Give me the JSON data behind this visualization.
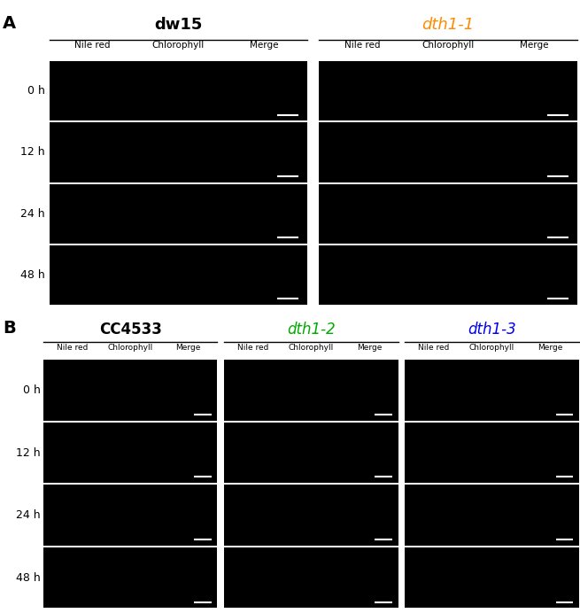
{
  "panel_A": {
    "label": "A",
    "groups": [
      {
        "name": "dw15",
        "color": "black",
        "italic": false,
        "bold": true
      },
      {
        "name": "dth1-1",
        "color": "#FF8C00",
        "italic": true,
        "bold": false
      }
    ],
    "col_labels": [
      "Nile red",
      "Chlorophyll",
      "Merge"
    ],
    "row_labels": [
      "0 h",
      "12 h",
      "24 h",
      "48 h"
    ],
    "n_rows": 4,
    "n_cols_per_group": 3
  },
  "panel_B": {
    "label": "B",
    "groups": [
      {
        "name": "CC4533",
        "color": "black",
        "italic": false,
        "bold": true
      },
      {
        "name": "dth1-2",
        "color": "#00AA00",
        "italic": true,
        "bold": false
      },
      {
        "name": "dth1-3",
        "color": "#0000EE",
        "italic": true,
        "bold": false
      }
    ],
    "col_labels": [
      "Nile red",
      "Chlorophyll",
      "Merge"
    ],
    "row_labels": [
      "0 h",
      "12 h",
      "24 h",
      "48 h"
    ],
    "n_rows": 4,
    "n_cols_per_group": 3
  },
  "fig_bg_color": "white",
  "group_fontsize_A": 13,
  "group_fontsize_B": 12,
  "sublabel_fontsize_A": 7.5,
  "sublabel_fontsize_B": 6.5,
  "row_label_fontsize": 9,
  "panel_label_fontsize": 14,
  "scale_bar_color": "white",
  "scale_bar_linewidth": 1.5
}
